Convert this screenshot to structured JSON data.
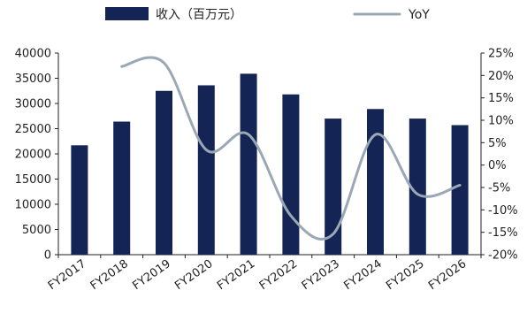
{
  "chart_data": {
    "type": "bar",
    "categories": [
      "FY2017",
      "FY2018",
      "FY2019",
      "FY2020",
      "FY2021",
      "FY2022",
      "FY2023",
      "FY2024",
      "FY2025",
      "FY2026"
    ],
    "series": [
      {
        "name": "收入（百万元）",
        "type": "bar",
        "axis": "left",
        "color": "#142454",
        "values": [
          21700,
          26400,
          32500,
          33600,
          35900,
          31800,
          27000,
          28900,
          27000,
          25700
        ]
      },
      {
        "name": "YoY",
        "type": "line",
        "axis": "right",
        "color": "#9aa8b6",
        "values": [
          null,
          22,
          22.8,
          3.4,
          6.8,
          -11.3,
          -15.4,
          6.8,
          -6.5,
          -4.5
        ]
      }
    ],
    "y_left": {
      "ylim": [
        0,
        40000
      ],
      "ticks": [
        0,
        5000,
        10000,
        15000,
        20000,
        25000,
        30000,
        35000,
        40000
      ],
      "tick_labels": [
        "0",
        "5000",
        "10000",
        "15000",
        "20000",
        "25000",
        "30000",
        "35000",
        "40000"
      ]
    },
    "y_right": {
      "ylim": [
        -20,
        25
      ],
      "ticks": [
        -20,
        -15,
        -10,
        -5,
        0,
        5,
        10,
        15,
        20,
        25
      ],
      "tick_labels": [
        "-20%",
        "-15%",
        "-10%",
        "-5%",
        "0%",
        "5%",
        "10%",
        "15%",
        "20%",
        "25%"
      ]
    },
    "legend": {
      "position": "top",
      "items": [
        {
          "label": "收入（百万元）",
          "marker": "bar"
        },
        {
          "label": "YoY",
          "marker": "line"
        }
      ]
    },
    "grid": false,
    "title": "",
    "xlabel": "",
    "ylabel": ""
  }
}
